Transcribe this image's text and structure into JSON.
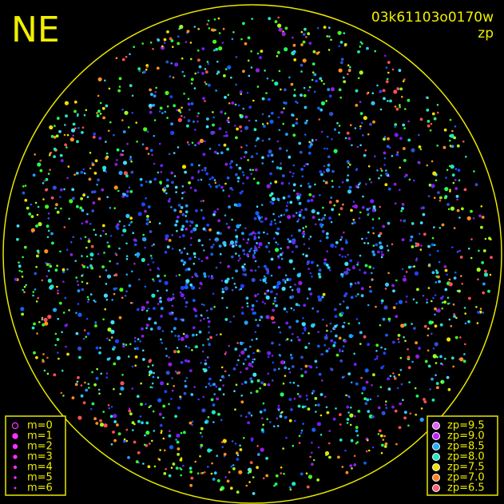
{
  "header": {
    "corner_label": "NE",
    "image_id": "03k61103o0170w",
    "mode": "zp"
  },
  "magnitude_legend": [
    "m=0",
    "m=1",
    "m=2",
    "m=3",
    "m=4",
    "m=5",
    "m=6"
  ],
  "zp_legend": [
    {
      "label": "zp=9.5",
      "color": "#e060ff"
    },
    {
      "label": "zp=9.0",
      "color": "#c020ff"
    },
    {
      "label": "zp=8.5",
      "color": "#20b0ff"
    },
    {
      "label": "zp=8.0",
      "color": "#20e8c0"
    },
    {
      "label": "zp=7.5",
      "color": "#f0e000"
    },
    {
      "label": "zp=7.0",
      "color": "#ff8020"
    },
    {
      "label": "zp=6.5",
      "color": "#ff6070"
    }
  ]
}
